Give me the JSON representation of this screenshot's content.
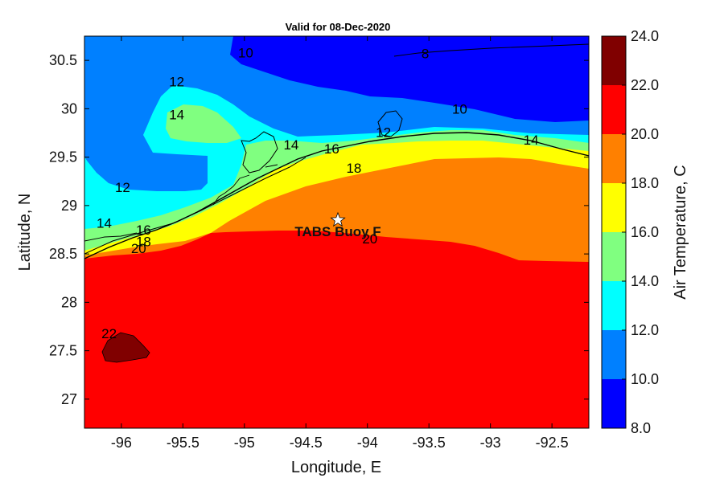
{
  "chart_data": {
    "type": "heatmap",
    "title": "Valid for 08-Dec-2020",
    "xlabel": "Longitude, E",
    "ylabel": "Latitude, N",
    "xlim": [
      -96.3,
      -92.2
    ],
    "ylim": [
      26.7,
      30.75
    ],
    "x_ticks": [
      -96,
      -95.5,
      -95,
      -94.5,
      -94,
      -93.5,
      -93,
      -92.5
    ],
    "x_tick_labels": [
      "-96",
      "-95.5",
      "-95",
      "-94.5",
      "-94",
      "-93.5",
      "-93",
      "-92.5"
    ],
    "y_ticks": [
      27,
      27.5,
      28,
      28.5,
      29,
      29.5,
      30,
      30.5
    ],
    "y_tick_labels": [
      "27",
      "27.5",
      "28",
      "28.5",
      "29",
      "29.5",
      "30",
      "30.5"
    ],
    "colorbar": {
      "label": "Air Temperature, C",
      "ticks": [
        8,
        10,
        12,
        14,
        16,
        18,
        20,
        22,
        24
      ],
      "tick_labels": [
        "8.0",
        "10.0",
        "12.0",
        "14.0",
        "16.0",
        "18.0",
        "20.0",
        "22.0",
        "24.0"
      ],
      "bands": [
        {
          "from": 8,
          "to": 10,
          "color": "#0000ff"
        },
        {
          "from": 10,
          "to": 12,
          "color": "#0080ff"
        },
        {
          "from": 12,
          "to": 14,
          "color": "#00ffff"
        },
        {
          "from": 14,
          "to": 16,
          "color": "#80ff80"
        },
        {
          "from": 16,
          "to": 18,
          "color": "#ffff00"
        },
        {
          "from": 18,
          "to": 20,
          "color": "#ff8000"
        },
        {
          "from": 20,
          "to": 22,
          "color": "#ff0000"
        },
        {
          "from": 22,
          "to": 24,
          "color": "#800000"
        }
      ]
    },
    "contour_labels": [
      {
        "text": "8",
        "lon": -93.53,
        "lat": 30.57
      },
      {
        "text": "10",
        "lon": -94.99,
        "lat": 30.58
      },
      {
        "text": "10",
        "lon": -93.25,
        "lat": 30.0
      },
      {
        "text": "12",
        "lon": -95.55,
        "lat": 30.28
      },
      {
        "text": "12",
        "lon": -93.87,
        "lat": 29.76
      },
      {
        "text": "12",
        "lon": -95.99,
        "lat": 29.19
      },
      {
        "text": "14",
        "lon": -95.55,
        "lat": 29.94
      },
      {
        "text": "14",
        "lon": -94.62,
        "lat": 29.63
      },
      {
        "text": "14",
        "lon": -92.67,
        "lat": 29.68
      },
      {
        "text": "14",
        "lon": -96.14,
        "lat": 28.82
      },
      {
        "text": "16",
        "lon": -94.29,
        "lat": 29.59
      },
      {
        "text": "16",
        "lon": -95.82,
        "lat": 28.75
      },
      {
        "text": "18",
        "lon": -94.11,
        "lat": 29.39
      },
      {
        "text": "18",
        "lon": -95.82,
        "lat": 28.63
      },
      {
        "text": "20",
        "lon": -93.98,
        "lat": 28.66
      },
      {
        "text": "20",
        "lon": -95.86,
        "lat": 28.56
      },
      {
        "text": "22",
        "lon": -96.1,
        "lat": 27.68
      }
    ],
    "marker": {
      "label": "TABS Buoy F",
      "lon": -94.24,
      "lat": 28.85
    }
  }
}
